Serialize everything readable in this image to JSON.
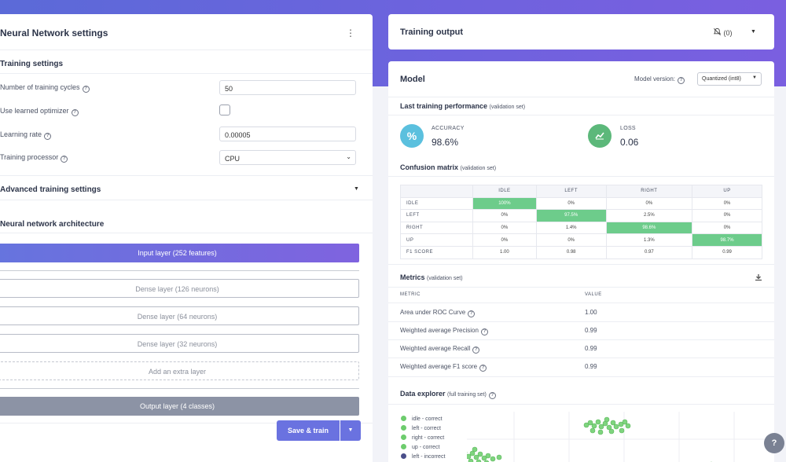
{
  "left_panel": {
    "title": "Neural Network settings",
    "kebab": "⋮",
    "training_settings": "Training settings",
    "fields": {
      "cycles_label": "Number of training cycles",
      "cycles_value": "50",
      "optimizer_label": "Use learned optimizer",
      "optimizer_checked": false,
      "lr_label": "Learning rate",
      "lr_value": "0.00005",
      "processor_label": "Training processor",
      "processor_value": "CPU"
    },
    "advanced": "Advanced training settings",
    "architecture": "Neural network architecture",
    "layers": {
      "input": "Input layer (252 features)",
      "dense1": "Dense layer (126 neurons)",
      "dense2": "Dense layer (64 neurons)",
      "dense3": "Dense layer (32 neurons)",
      "add": "Add an extra layer",
      "output": "Output layer (4 classes)"
    },
    "save_train": "Save & train"
  },
  "training_output": {
    "title": "Training output",
    "notif_count": "(0)"
  },
  "model": {
    "title": "Model",
    "version_label": "Model version:",
    "version_value": "Quantized (int8)",
    "last_perf": "Last training performance",
    "last_perf_note": "(validation set)",
    "accuracy_label": "ACCURACY",
    "accuracy_value": "98.6%",
    "loss_label": "LOSS",
    "loss_value": "0.06",
    "confusion_title": "Confusion matrix",
    "confusion_note": "(validation set)",
    "confusion": {
      "cols": [
        "IDLE",
        "LEFT",
        "RIGHT",
        "UP"
      ],
      "rows": [
        {
          "label": "IDLE",
          "cells": [
            "100%",
            "0%",
            "0%",
            "0%"
          ]
        },
        {
          "label": "LEFT",
          "cells": [
            "0%",
            "97.5%",
            "2.5%",
            "0%"
          ]
        },
        {
          "label": "RIGHT",
          "cells": [
            "0%",
            "1.4%",
            "98.6%",
            "0%"
          ]
        },
        {
          "label": "UP",
          "cells": [
            "0%",
            "0%",
            "1.3%",
            "98.7%"
          ]
        },
        {
          "label": "F1 SCORE",
          "cells": [
            "1.00",
            "0.98",
            "0.97",
            "0.99"
          ]
        }
      ]
    },
    "metrics_title": "Metrics",
    "metrics_note": "(validation set)",
    "metrics_headers": {
      "metric": "METRIC",
      "value": "VALUE"
    },
    "metrics": [
      {
        "name": "Area under ROC Curve",
        "value": "1.00"
      },
      {
        "name": "Weighted average Precision",
        "value": "0.99"
      },
      {
        "name": "Weighted average Recall",
        "value": "0.99"
      },
      {
        "name": "Weighted average F1 score",
        "value": "0.99"
      }
    ],
    "explorer_title": "Data explorer",
    "explorer_note": "(full training set)",
    "legend": [
      {
        "label": "idle - correct",
        "color": "#6dcc6d"
      },
      {
        "label": "left - correct",
        "color": "#6dcc6d"
      },
      {
        "label": "right - correct",
        "color": "#6dcc6d"
      },
      {
        "label": "up - correct",
        "color": "#6dcc6d"
      },
      {
        "label": "left - incorrect",
        "color": "#4a4f8a"
      }
    ]
  },
  "colors": {
    "accent": "#6a72e0",
    "green": "#6dcc8b",
    "teal": "#5bc0de"
  }
}
